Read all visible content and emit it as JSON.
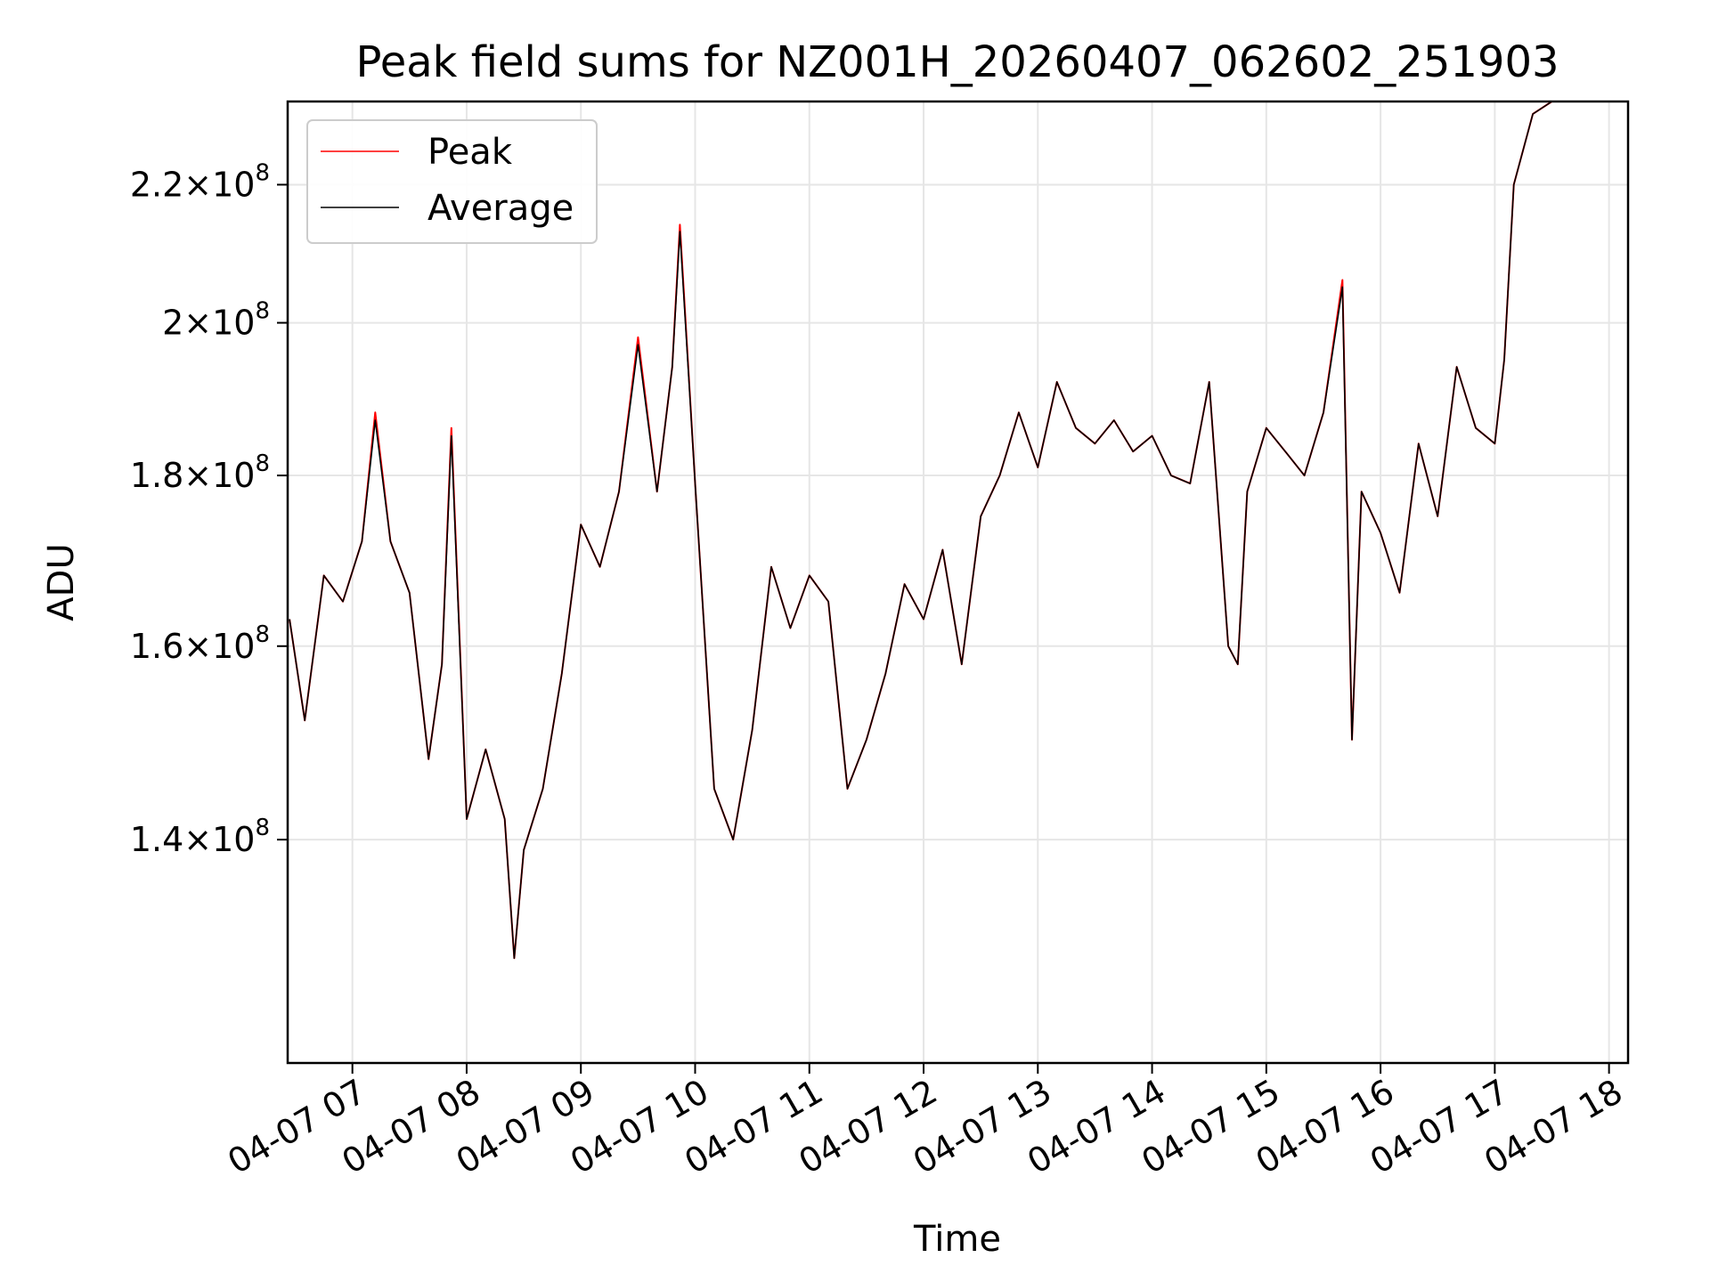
{
  "chart_data": {
    "type": "line",
    "title": "Peak field sums for NZ001H_20260407_062602_251903",
    "xlabel": "Time",
    "ylabel": "ADU",
    "yscale": "log",
    "ylim": [
      120000000.0,
      233000000.0
    ],
    "xlim": [
      "04-07 06:26",
      "04-07 18:10"
    ],
    "grid": true,
    "legend_position": "upper-left",
    "x_ticks": [
      "04-07 07",
      "04-07 08",
      "04-07 09",
      "04-07 10",
      "04-07 11",
      "04-07 12",
      "04-07 13",
      "04-07 14",
      "04-07 15",
      "04-07 16",
      "04-07 17",
      "04-07 18"
    ],
    "y_ticks": [
      {
        "value": 220000000.0,
        "mantissa": "2.2",
        "base": "10",
        "exponent": "8"
      },
      {
        "value": 200000000.0,
        "mantissa": "2",
        "base": "10",
        "exponent": "8"
      },
      {
        "value": 180000000.0,
        "mantissa": "1.8",
        "base": "10",
        "exponent": "8"
      },
      {
        "value": 160000000.0,
        "mantissa": "1.6",
        "base": "10",
        "exponent": "8"
      },
      {
        "value": 140000000.0,
        "mantissa": "1.4",
        "base": "10",
        "exponent": "8"
      }
    ],
    "x": [
      "06:27",
      "06:35",
      "06:45",
      "06:55",
      "07:05",
      "07:12",
      "07:20",
      "07:30",
      "07:40",
      "07:47",
      "07:52",
      "08:00",
      "08:10",
      "08:20",
      "08:25",
      "08:30",
      "08:40",
      "08:50",
      "09:00",
      "09:10",
      "09:20",
      "09:30",
      "09:40",
      "09:48",
      "09:52",
      "10:00",
      "10:10",
      "10:20",
      "10:30",
      "10:40",
      "10:50",
      "11:00",
      "11:10",
      "11:20",
      "11:30",
      "11:40",
      "11:50",
      "12:00",
      "12:10",
      "12:20",
      "12:30",
      "12:40",
      "12:50",
      "13:00",
      "13:10",
      "13:20",
      "13:30",
      "13:40",
      "13:50",
      "14:00",
      "14:10",
      "14:20",
      "14:30",
      "14:40",
      "14:45",
      "14:50",
      "15:00",
      "15:10",
      "15:20",
      "15:30",
      "15:40",
      "15:45",
      "15:50",
      "16:00",
      "16:10",
      "16:20",
      "16:30",
      "16:40",
      "16:50",
      "17:00",
      "17:05",
      "17:10",
      "17:20",
      "17:30"
    ],
    "series": [
      {
        "name": "Peak",
        "color": "#ff0000",
        "values": [
          163000000.0,
          152000000.0,
          168000000.0,
          165000000.0,
          172000000.0,
          188000000.0,
          172000000.0,
          166000000.0,
          148000000.0,
          158000000.0,
          186000000.0,
          142000000.0,
          149000000.0,
          142000000.0,
          129000000.0,
          139000000.0,
          145000000.0,
          157000000.0,
          174000000.0,
          169000000.0,
          178000000.0,
          198000000.0,
          178000000.0,
          194000000.0,
          214000000.0,
          179000000.0,
          145000000.0,
          140000000.0,
          151000000.0,
          169000000.0,
          162000000.0,
          168000000.0,
          165000000.0,
          145000000.0,
          150000000.0,
          157000000.0,
          167000000.0,
          163000000.0,
          171000000.0,
          158000000.0,
          175000000.0,
          180000000.0,
          188000000.0,
          181000000.0,
          192000000.0,
          186000000.0,
          184000000.0,
          187000000.0,
          183000000.0,
          185000000.0,
          180000000.0,
          179000000.0,
          192000000.0,
          160000000.0,
          158000000.0,
          178000000.0,
          186000000.0,
          183000000.0,
          180000000.0,
          188000000.0,
          206000000.0,
          150000000.0,
          178000000.0,
          173000000.0,
          166000000.0,
          184000000.0,
          175000000.0,
          194000000.0,
          186000000.0,
          184000000.0,
          195000000.0,
          220000000.0,
          231000000.0,
          233000000.0
        ]
      },
      {
        "name": "Average",
        "color": "#000000",
        "values": [
          163000000.0,
          152000000.0,
          168000000.0,
          165000000.0,
          172000000.0,
          187000000.0,
          172000000.0,
          166000000.0,
          148000000.0,
          158000000.0,
          185000000.0,
          142000000.0,
          149000000.0,
          142000000.0,
          129000000.0,
          139000000.0,
          145000000.0,
          157000000.0,
          174000000.0,
          169000000.0,
          178000000.0,
          197000000.0,
          178000000.0,
          194000000.0,
          213000000.0,
          179000000.0,
          145000000.0,
          140000000.0,
          151000000.0,
          169000000.0,
          162000000.0,
          168000000.0,
          165000000.0,
          145000000.0,
          150000000.0,
          157000000.0,
          167000000.0,
          163000000.0,
          171000000.0,
          158000000.0,
          175000000.0,
          180000000.0,
          188000000.0,
          181000000.0,
          192000000.0,
          186000000.0,
          184000000.0,
          187000000.0,
          183000000.0,
          185000000.0,
          180000000.0,
          179000000.0,
          192000000.0,
          160000000.0,
          158000000.0,
          178000000.0,
          186000000.0,
          183000000.0,
          180000000.0,
          188000000.0,
          205000000.0,
          150000000.0,
          178000000.0,
          173000000.0,
          166000000.0,
          184000000.0,
          175000000.0,
          194000000.0,
          186000000.0,
          184000000.0,
          195000000.0,
          220000000.0,
          231000000.0,
          233000000.0
        ]
      }
    ]
  }
}
